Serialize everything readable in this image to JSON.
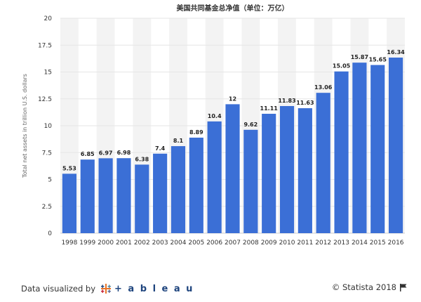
{
  "footer": {
    "visualized_by": "Data visualized by",
    "tableau_word": "+ a b l e a u",
    "copyright": "© Statista 2018",
    "logo_icon": "tableau-logo-icon",
    "flag_icon": "flag-icon"
  },
  "colors": {
    "bar": "#3b6fd6",
    "band": "#f3f3f3",
    "grid": "#e6e6e6",
    "axis": "#cccccc",
    "tableau_blue": "#1f457e",
    "tableau_orange": "#e8762b"
  },
  "chart_data": {
    "type": "bar",
    "title": "美国共同基金总净值（单位：万亿）",
    "xlabel": "",
    "ylabel": "Total net assets in trillion U.S. dollars",
    "categories": [
      "1998",
      "1999",
      "2000",
      "2001",
      "2002",
      "2003",
      "2004",
      "2005",
      "2006",
      "2007",
      "2008",
      "2009",
      "2010",
      "2011",
      "2012",
      "2013",
      "2014",
      "2015",
      "2016"
    ],
    "values": [
      5.53,
      6.85,
      6.97,
      6.98,
      6.38,
      7.4,
      8.1,
      8.89,
      10.4,
      12,
      9.62,
      11.11,
      11.83,
      11.63,
      13.06,
      15.05,
      15.87,
      15.65,
      16.34
    ],
    "data_labels": [
      "5.53",
      "6.85",
      "6.97",
      "6.98",
      "6.38",
      "7.4",
      "8.1",
      "8.89",
      "10.4",
      "12",
      "9.62",
      "11.11",
      "11.83",
      "11.63",
      "13.06",
      "15.05",
      "15.87",
      "15.65",
      "16.34"
    ],
    "yticks": [
      0,
      2.5,
      5,
      7.5,
      10,
      12.5,
      15,
      17.5,
      20
    ],
    "ytick_labels": [
      "0",
      "2.5",
      "5",
      "7.5",
      "10",
      "12.5",
      "15",
      "17.5",
      "20"
    ],
    "ylim": [
      0,
      20
    ],
    "grid": true,
    "legend": "none"
  }
}
